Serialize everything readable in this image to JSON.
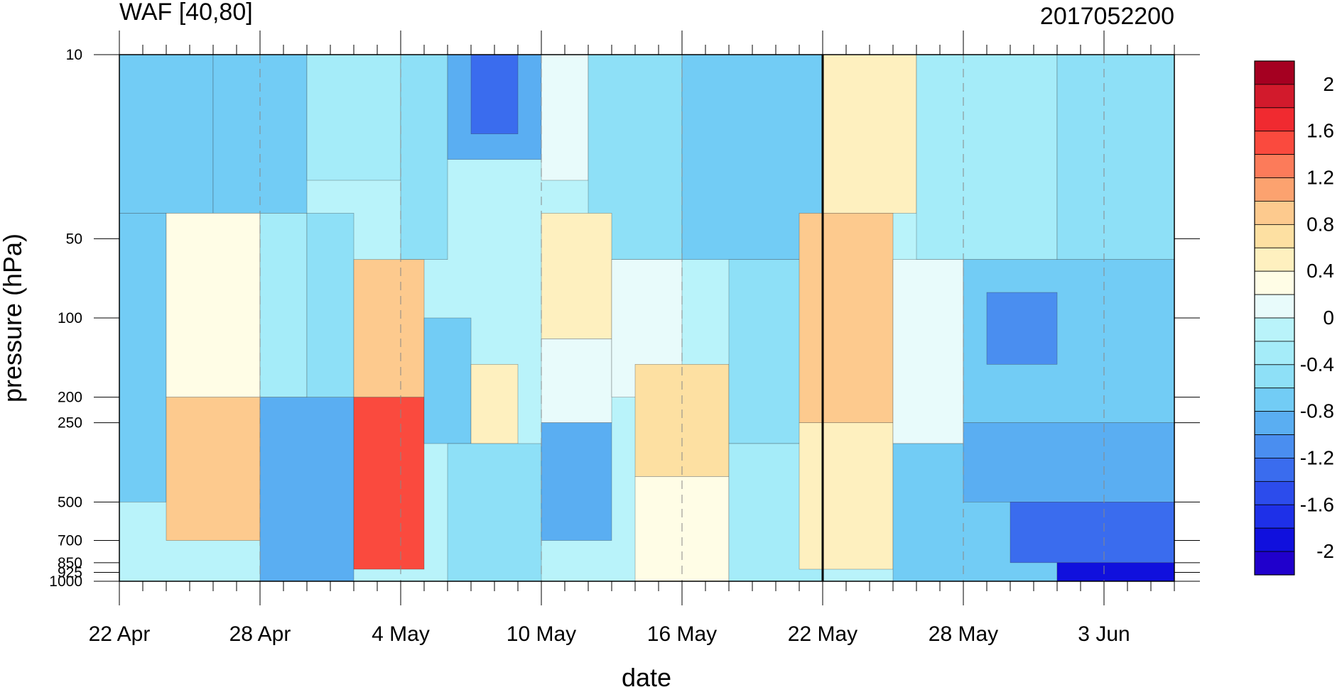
{
  "chart_data": {
    "type": "heatmap",
    "title": "WAF [40,80]",
    "subtitle_right": "2017052200",
    "xlabel": "date",
    "ylabel": "pressure (hPa)",
    "x_ticks": [
      "22 Apr",
      "28 Apr",
      "4 May",
      "10 May",
      "16 May",
      "22 May",
      "28 May",
      "3 Jun"
    ],
    "x_tick_days_since_22apr": [
      0,
      6,
      12,
      18,
      24,
      30,
      36,
      42
    ],
    "x_range_days": [
      0,
      45
    ],
    "y_ticks": [
      "10",
      "50",
      "100",
      "200",
      "250",
      "500",
      "700",
      "850",
      "925",
      "1000"
    ],
    "y_tick_values": [
      10,
      50,
      100,
      200,
      250,
      500,
      700,
      850,
      925,
      1000
    ],
    "y_scale": "log",
    "y_range": [
      10,
      1000
    ],
    "vertical_marker_day": 30,
    "colorbar": {
      "labels": [
        "2",
        "1.6",
        "1.2",
        "0.8",
        "0.4",
        "0",
        "-0.4",
        "-0.8",
        "-1.2",
        "-1.6",
        "-2"
      ],
      "label_values": [
        2,
        1.6,
        1.2,
        0.8,
        0.4,
        0,
        -0.4,
        -0.8,
        -1.2,
        -1.6,
        -2
      ],
      "colors_top_to_bottom": [
        "#a50021",
        "#d21a2c",
        "#f02a30",
        "#fa4a3e",
        "#fc7b5a",
        "#fca26f",
        "#fdca8e",
        "#fde0a2",
        "#fef0bf",
        "#fffde6",
        "#e8fbfb",
        "#b9f3fa",
        "#a5ecf9",
        "#8ee0f7",
        "#72ccf5",
        "#5aaef2",
        "#4a8ef0",
        "#3a6cee",
        "#2c4cec",
        "#1e30e8",
        "#1010dd",
        "#2000cc"
      ]
    },
    "cells": [
      {
        "d0": 0,
        "d1": 4,
        "p0": 10,
        "p1": 40,
        "v": -0.6
      },
      {
        "d0": 4,
        "d1": 8,
        "p0": 10,
        "p1": 40,
        "v": -0.6
      },
      {
        "d0": 8,
        "d1": 12,
        "p0": 10,
        "p1": 30,
        "v": -0.2
      },
      {
        "d0": 12,
        "d1": 14,
        "p0": 10,
        "p1": 60,
        "v": -0.4
      },
      {
        "d0": 14,
        "d1": 18,
        "p0": 10,
        "p1": 25,
        "v": -0.9
      },
      {
        "d0": 15,
        "d1": 17,
        "p0": 10,
        "p1": 20,
        "v": -1.3
      },
      {
        "d0": 18,
        "d1": 20,
        "p0": 10,
        "p1": 30,
        "v": 0.1
      },
      {
        "d0": 20,
        "d1": 24,
        "p0": 10,
        "p1": 60,
        "v": -0.5
      },
      {
        "d0": 24,
        "d1": 30,
        "p0": 10,
        "p1": 60,
        "v": -0.7
      },
      {
        "d0": 30,
        "d1": 34,
        "p0": 10,
        "p1": 40,
        "v": 0.5
      },
      {
        "d0": 34,
        "d1": 40,
        "p0": 10,
        "p1": 60,
        "v": -0.3
      },
      {
        "d0": 40,
        "d1": 45,
        "p0": 10,
        "p1": 60,
        "v": -0.5
      },
      {
        "d0": 0,
        "d1": 2,
        "p0": 40,
        "p1": 500,
        "v": -0.6
      },
      {
        "d0": 2,
        "d1": 6,
        "p0": 40,
        "p1": 200,
        "v": 0.4
      },
      {
        "d0": 2,
        "d1": 6,
        "p0": 200,
        "p1": 700,
        "v": 0.9
      },
      {
        "d0": 6,
        "d1": 8,
        "p0": 40,
        "p1": 200,
        "v": -0.2
      },
      {
        "d0": 6,
        "d1": 10,
        "p0": 200,
        "p1": 1000,
        "v": -0.8
      },
      {
        "d0": 8,
        "d1": 10,
        "p0": 40,
        "p1": 200,
        "v": -0.4
      },
      {
        "d0": 10,
        "d1": 13,
        "p0": 60,
        "p1": 200,
        "v": 0.9
      },
      {
        "d0": 10,
        "d1": 13,
        "p0": 200,
        "p1": 900,
        "v": 1.5
      },
      {
        "d0": 13,
        "d1": 15,
        "p0": 100,
        "p1": 300,
        "v": -0.7
      },
      {
        "d0": 15,
        "d1": 17,
        "p0": 150,
        "p1": 300,
        "v": 0.5
      },
      {
        "d0": 14,
        "d1": 18,
        "p0": 300,
        "p1": 1000,
        "v": -0.5
      },
      {
        "d0": 18,
        "d1": 21,
        "p0": 40,
        "p1": 120,
        "v": 0.6
      },
      {
        "d0": 18,
        "d1": 21,
        "p0": 120,
        "p1": 250,
        "v": 0.05
      },
      {
        "d0": 18,
        "d1": 21,
        "p0": 250,
        "p1": 700,
        "v": -0.9
      },
      {
        "d0": 21,
        "d1": 24,
        "p0": 60,
        "p1": 200,
        "v": 0.05
      },
      {
        "d0": 22,
        "d1": 26,
        "p0": 150,
        "p1": 400,
        "v": 0.8
      },
      {
        "d0": 22,
        "d1": 26,
        "p0": 400,
        "p1": 1000,
        "v": 0.4
      },
      {
        "d0": 26,
        "d1": 30,
        "p0": 60,
        "p1": 300,
        "v": -0.5
      },
      {
        "d0": 26,
        "d1": 30,
        "p0": 300,
        "p1": 1000,
        "v": -0.2
      },
      {
        "d0": 29,
        "d1": 33,
        "p0": 40,
        "p1": 250,
        "v": 0.9
      },
      {
        "d0": 29,
        "d1": 33,
        "p0": 250,
        "p1": 900,
        "v": 0.6
      },
      {
        "d0": 33,
        "d1": 36,
        "p0": 60,
        "p1": 300,
        "v": 0.2
      },
      {
        "d0": 33,
        "d1": 40,
        "p0": 300,
        "p1": 1000,
        "v": -0.6
      },
      {
        "d0": 36,
        "d1": 45,
        "p0": 60,
        "p1": 250,
        "v": -0.7
      },
      {
        "d0": 37,
        "d1": 40,
        "p0": 80,
        "p1": 150,
        "v": -1.0
      },
      {
        "d0": 36,
        "d1": 45,
        "p0": 250,
        "p1": 500,
        "v": -0.9
      },
      {
        "d0": 38,
        "d1": 45,
        "p0": 500,
        "p1": 850,
        "v": -1.3
      },
      {
        "d0": 40,
        "d1": 45,
        "p0": 850,
        "p1": 1000,
        "v": -1.8
      }
    ]
  }
}
